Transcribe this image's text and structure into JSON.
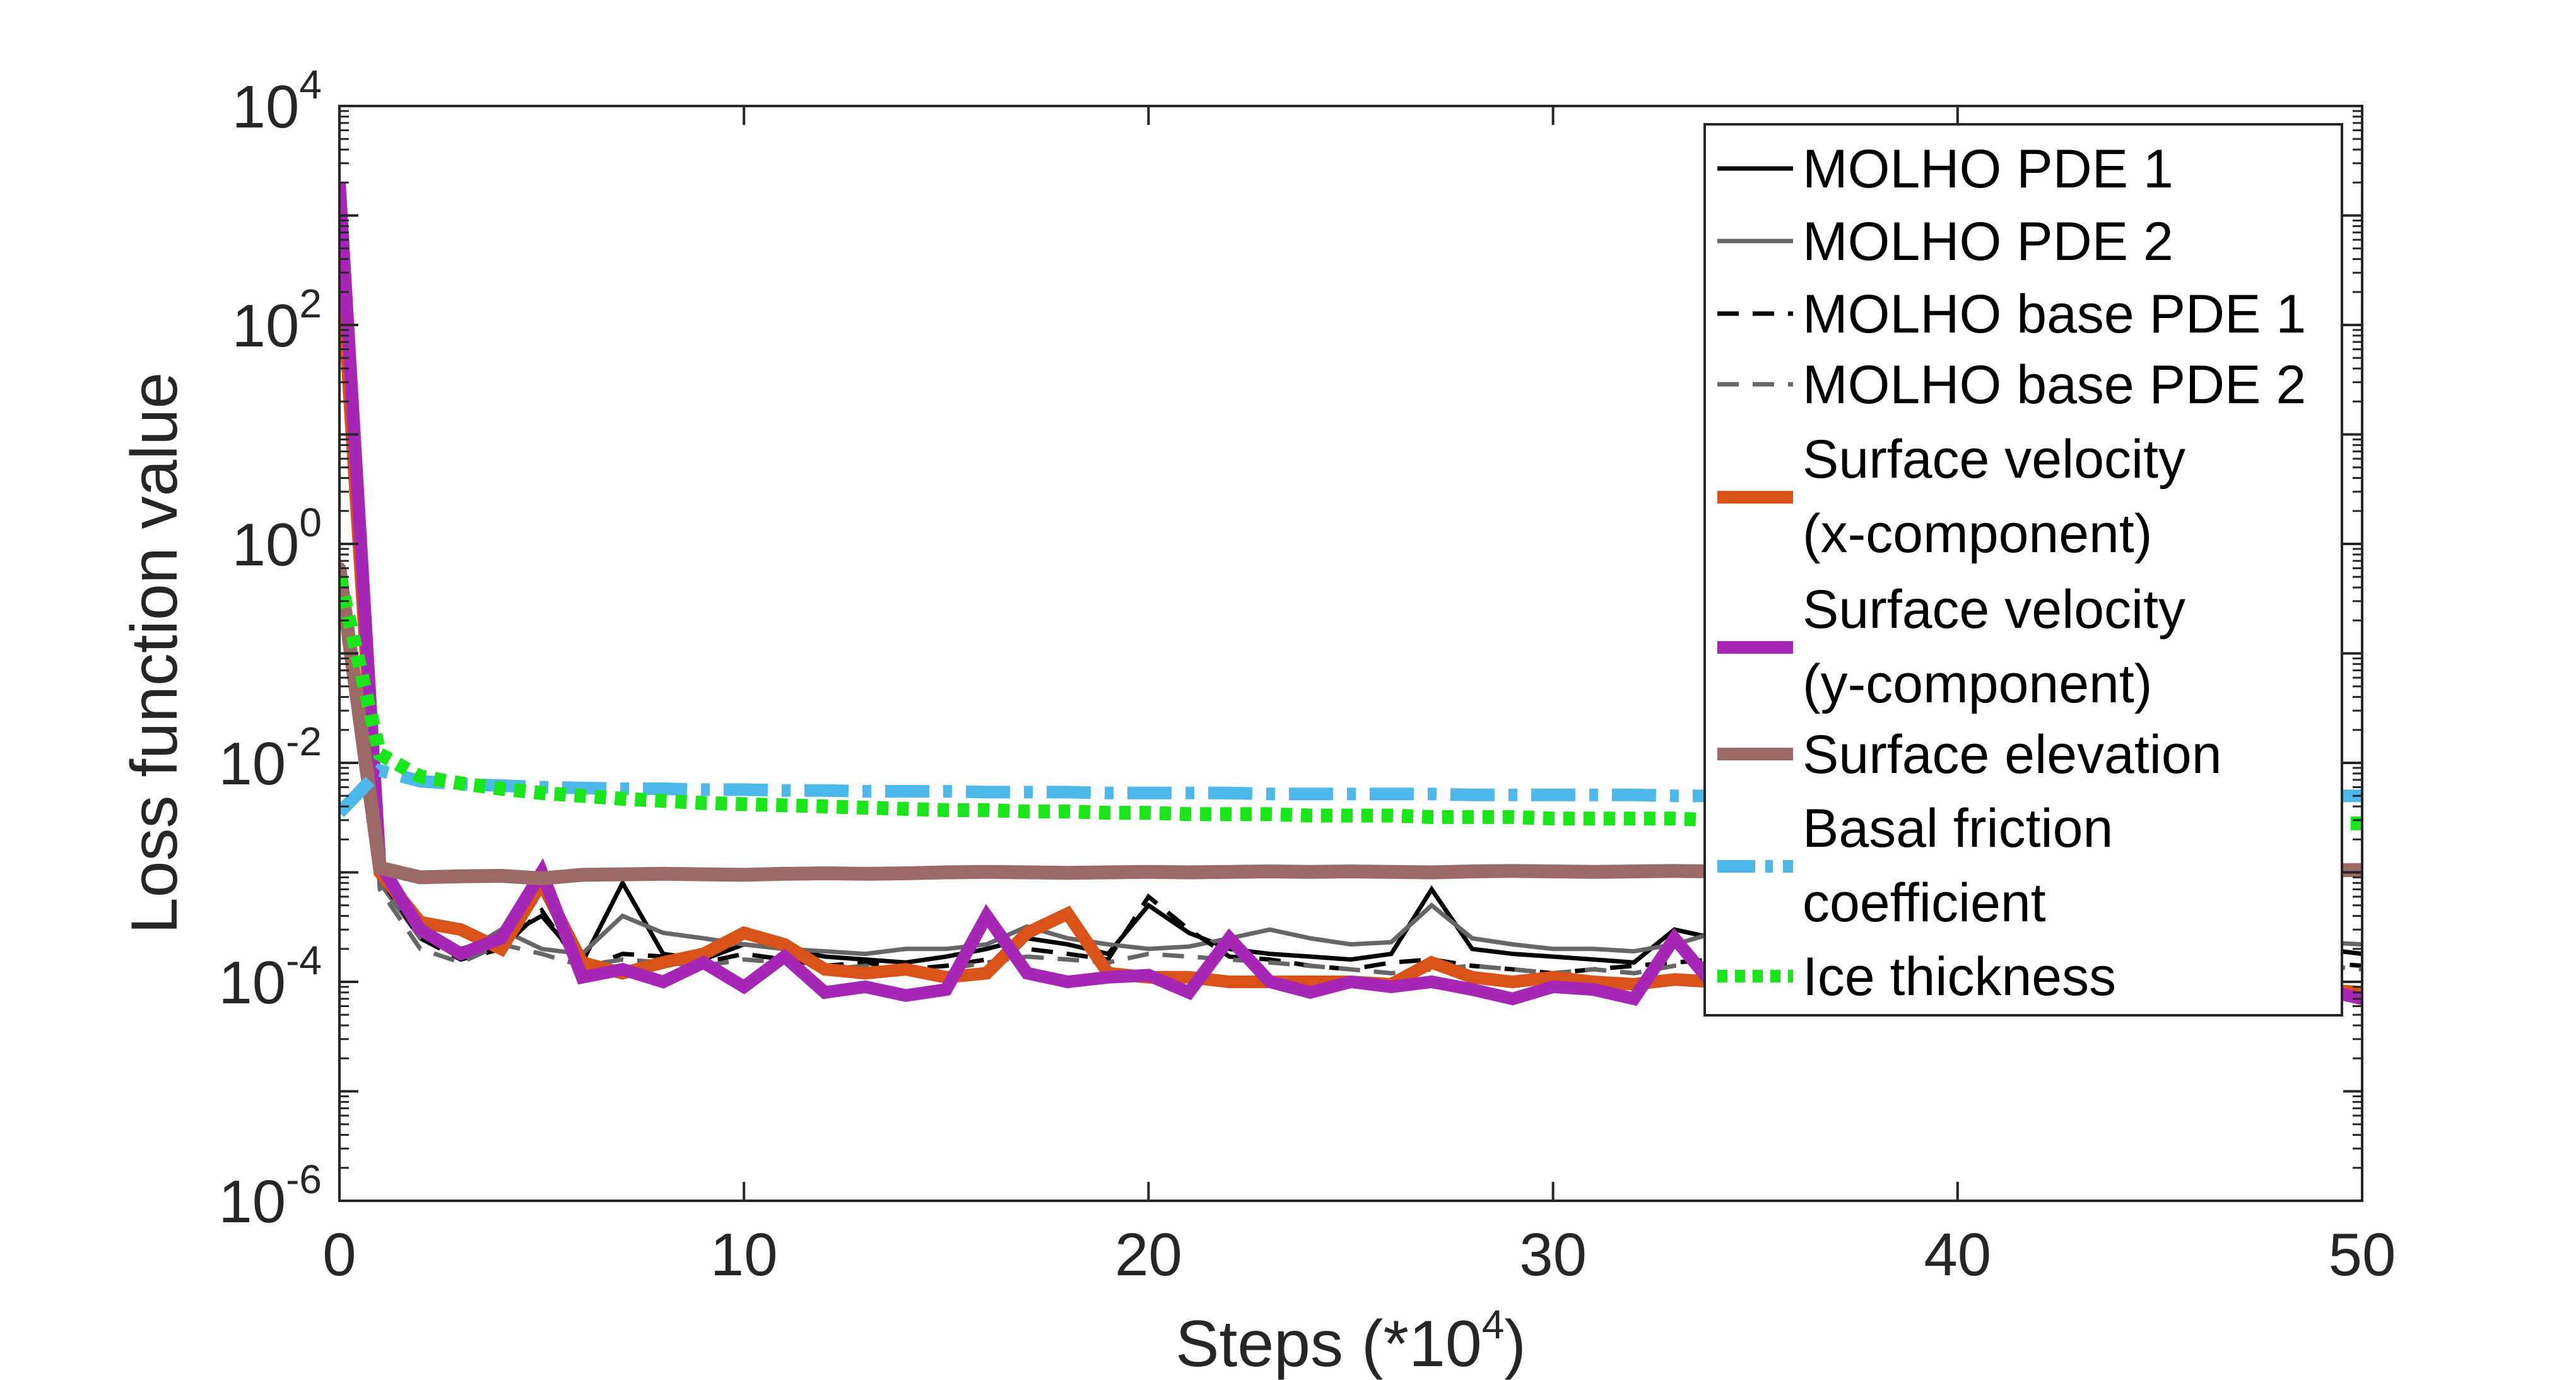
{
  "chart_data": {
    "type": "line",
    "xlabel": "Steps (*10",
    "xlabel_exp": "4",
    "xlabel_close": ")",
    "ylabel": "Loss function value",
    "xlim": [
      0,
      50
    ],
    "ylim": [
      1e-06,
      10000.0
    ],
    "y_scale": "log",
    "x_ticks": [
      0,
      10,
      20,
      30,
      40,
      50
    ],
    "x_tick_labels": [
      "0",
      "10",
      "20",
      "30",
      "40",
      "50"
    ],
    "y_ticks": [
      -6,
      -4,
      -2,
      0,
      2,
      4
    ],
    "y_tick_base": "10",
    "y_tick_exps": [
      "-6",
      "-4",
      "-2",
      "0",
      "2",
      "4"
    ],
    "grid": false,
    "legend_position": "top-right",
    "x": [
      0,
      1,
      2,
      3,
      4,
      5,
      6,
      7,
      8,
      9,
      10,
      11,
      12,
      13,
      14,
      15,
      16,
      17,
      18,
      19,
      20,
      21,
      22,
      23,
      24,
      25,
      26,
      27,
      28,
      29,
      30,
      31,
      32,
      33,
      34,
      35,
      36,
      37,
      38,
      39,
      40,
      41,
      42,
      43,
      44,
      45,
      46,
      47,
      48,
      49,
      50
    ],
    "series": [
      {
        "name": "MOLHO PDE 1",
        "color": "#000000",
        "style": "solid",
        "width": 7,
        "values": [
          300,
          0.001,
          0.0003,
          0.0002,
          0.00025,
          0.0004,
          0.00015,
          0.0008,
          0.00018,
          0.00016,
          0.00022,
          0.0002,
          0.00017,
          0.00016,
          0.00015,
          0.00017,
          0.0002,
          0.00025,
          0.00022,
          0.00018,
          0.0005,
          0.00028,
          0.0002,
          0.00018,
          0.00017,
          0.00016,
          0.00018,
          0.0007,
          0.0002,
          0.00018,
          0.00017,
          0.00016,
          0.00015,
          0.0003,
          0.00025,
          0.00022,
          0.0002,
          0.00022,
          0.00025,
          0.00021,
          0.00022,
          0.0002,
          0.00021,
          0.00023,
          0.00022,
          0.00021,
          0.0002,
          0.00022,
          0.00021,
          0.0002,
          0.00018
        ]
      },
      {
        "name": "MOLHO PDE 2",
        "color": "#666666",
        "style": "solid",
        "width": 7,
        "values": [
          200,
          0.0008,
          0.00025,
          0.00018,
          0.0003,
          0.0002,
          0.00018,
          0.0004,
          0.00028,
          0.00025,
          0.00022,
          0.0002,
          0.00019,
          0.00018,
          0.0002,
          0.0002,
          0.00022,
          0.00032,
          0.00025,
          0.00022,
          0.0002,
          0.00021,
          0.00025,
          0.0003,
          0.00025,
          0.00022,
          0.00023,
          0.0005,
          0.00025,
          0.00022,
          0.0002,
          0.0002,
          0.00019,
          0.00022,
          0.00028,
          0.00025,
          0.00024,
          0.00022,
          0.00023,
          0.00024,
          0.00022,
          0.00023,
          0.00024,
          0.00025,
          0.00023,
          0.00024,
          0.00022,
          0.00023,
          0.00024,
          0.00023,
          0.00022
        ]
      },
      {
        "name": "MOLHO base PDE 1",
        "color": "#000000",
        "style": "dashed",
        "width": 7,
        "values": [
          250,
          0.0009,
          0.00025,
          0.00016,
          0.0002,
          0.00045,
          0.00013,
          0.00018,
          0.00017,
          0.00015,
          0.00018,
          0.00016,
          0.00014,
          0.00015,
          0.00013,
          0.00014,
          0.00016,
          0.0002,
          0.00018,
          0.00016,
          0.0006,
          0.0003,
          0.00017,
          0.00016,
          0.00014,
          0.00013,
          0.00015,
          0.00016,
          0.00014,
          0.00013,
          0.00012,
          0.00013,
          0.00014,
          0.00015,
          0.00016,
          0.00015,
          0.00014,
          0.00015,
          0.00016,
          0.00015,
          0.00014,
          0.00015,
          0.00016,
          0.00015,
          0.00014,
          0.00015,
          0.00014,
          0.00015,
          0.00016,
          0.00015,
          0.00014
        ]
      },
      {
        "name": "MOLHO base PDE 2",
        "color": "#666666",
        "style": "dashed",
        "width": 7,
        "values": [
          150,
          0.0007,
          0.0002,
          0.00015,
          0.00022,
          0.00018,
          0.00014,
          0.00016,
          0.00015,
          0.00014,
          0.00016,
          0.00015,
          0.00013,
          0.00014,
          0.00012,
          0.00013,
          0.00015,
          0.00017,
          0.00016,
          0.00015,
          0.00018,
          0.00017,
          0.00016,
          0.00015,
          0.00014,
          0.00013,
          0.00012,
          0.00013,
          0.00014,
          0.00013,
          0.00012,
          0.00013,
          0.00012,
          0.00014,
          0.00015,
          0.00014,
          0.00013,
          0.00014,
          0.00015,
          0.00014,
          0.00013,
          0.00014,
          0.00015,
          0.00014,
          0.00013,
          0.00014,
          0.00013,
          0.00014,
          0.00015,
          0.00014,
          0.00013
        ]
      },
      {
        "name": "Surface velocity",
        "name2": "(x-component)",
        "color": "#d95319",
        "style": "solid",
        "width": 20,
        "values": [
          600,
          0.001,
          0.00035,
          0.0003,
          0.0002,
          0.0008,
          0.00015,
          0.00012,
          0.00015,
          0.00018,
          0.00028,
          0.00022,
          0.00013,
          0.00012,
          0.00013,
          0.00011,
          0.00012,
          0.00028,
          0.00042,
          0.00012,
          0.00011,
          0.00011,
          0.0001,
          0.0001,
          0.0001,
          0.0001,
          9.5e-05,
          0.00015,
          0.00011,
          0.0001,
          0.00011,
          0.0001,
          9.5e-05,
          0.000105,
          0.0001,
          0.0001,
          9.5e-05,
          9.5e-05,
          9e-05,
          9.5e-05,
          9e-05,
          9.5e-05,
          9e-05,
          9.5e-05,
          9e-05,
          9.5e-05,
          9e-05,
          9.5e-05,
          9e-05,
          8.5e-05,
          8e-05
        ]
      },
      {
        "name": "Surface velocity",
        "name2": "(y-component)",
        "color": "#a626b5",
        "style": "solid",
        "width": 20,
        "values": [
          2000,
          0.0012,
          0.0003,
          0.00018,
          0.00025,
          0.001,
          0.00011,
          0.00013,
          0.0001,
          0.00015,
          9e-05,
          0.00017,
          8e-05,
          9e-05,
          7.5e-05,
          8.5e-05,
          0.0004,
          0.00012,
          0.0001,
          0.00011,
          0.000115,
          8e-05,
          0.00025,
          0.0001,
          8e-05,
          0.0001,
          9e-05,
          0.0001,
          8.5e-05,
          7e-05,
          9e-05,
          8.5e-05,
          7e-05,
          0.00025,
          9e-05,
          8e-05,
          7.5e-05,
          8e-05,
          8.5e-05,
          8e-05,
          8.5e-05,
          8e-05,
          7.5e-05,
          8e-05,
          8.5e-05,
          8e-05,
          7.5e-05,
          8e-05,
          9e-05,
          8.5e-05,
          7e-05
        ]
      },
      {
        "name": "Surface elevation",
        "color": "#9b6a66",
        "style": "solid-marker",
        "width": 22,
        "values": [
          0.6,
          0.0011,
          0.0009,
          0.00092,
          0.00093,
          0.00088,
          0.00095,
          0.00096,
          0.00097,
          0.00096,
          0.00095,
          0.00097,
          0.00098,
          0.00097,
          0.00098,
          0.001,
          0.00101,
          0.001,
          0.00099,
          0.001,
          0.00101,
          0.001,
          0.00101,
          0.00102,
          0.00101,
          0.00102,
          0.00101,
          0.001,
          0.00102,
          0.00103,
          0.00102,
          0.00101,
          0.00102,
          0.00103,
          0.00102,
          0.00104,
          0.00103,
          0.00102,
          0.00103,
          0.00104,
          0.00103,
          0.00104,
          0.00105,
          0.00104,
          0.00103,
          0.00104,
          0.00105,
          0.00104,
          0.00103,
          0.00104,
          0.00105
        ]
      },
      {
        "name": "Basal friction",
        "name2": " coefficient",
        "color": "#4db8ea",
        "style": "dashdot",
        "width": 20,
        "values": [
          0.0035,
          0.0085,
          0.0068,
          0.0064,
          0.0062,
          0.006,
          0.0059,
          0.0058,
          0.0058,
          0.0057,
          0.0057,
          0.0056,
          0.0056,
          0.0055,
          0.0055,
          0.0055,
          0.0054,
          0.0054,
          0.0054,
          0.0053,
          0.0053,
          0.0053,
          0.0053,
          0.0052,
          0.0052,
          0.0052,
          0.0052,
          0.0052,
          0.0051,
          0.0051,
          0.0051,
          0.0051,
          0.0051,
          0.005,
          0.005,
          0.005,
          0.005,
          0.005,
          0.005,
          0.005,
          0.005,
          0.005,
          0.005,
          0.005,
          0.005,
          0.005,
          0.005,
          0.005,
          0.005,
          0.005,
          0.005
        ]
      },
      {
        "name": "Ice thickness",
        "color": "#19e619",
        "style": "dotted",
        "width": 22,
        "values": [
          0.5,
          0.012,
          0.0075,
          0.0065,
          0.0058,
          0.0053,
          0.005,
          0.0047,
          0.0045,
          0.0043,
          0.0042,
          0.0041,
          0.004,
          0.0039,
          0.0038,
          0.0037,
          0.0037,
          0.0036,
          0.0036,
          0.0035,
          0.0035,
          0.0034,
          0.0034,
          0.0034,
          0.0033,
          0.0033,
          0.0033,
          0.0032,
          0.0032,
          0.0032,
          0.0031,
          0.0031,
          0.0031,
          0.0031,
          0.003,
          0.003,
          0.003,
          0.003,
          0.003,
          0.0029,
          0.0029,
          0.0029,
          0.0029,
          0.0029,
          0.0029,
          0.0028,
          0.0028,
          0.0028,
          0.0028,
          0.0028,
          0.0028
        ]
      }
    ]
  }
}
